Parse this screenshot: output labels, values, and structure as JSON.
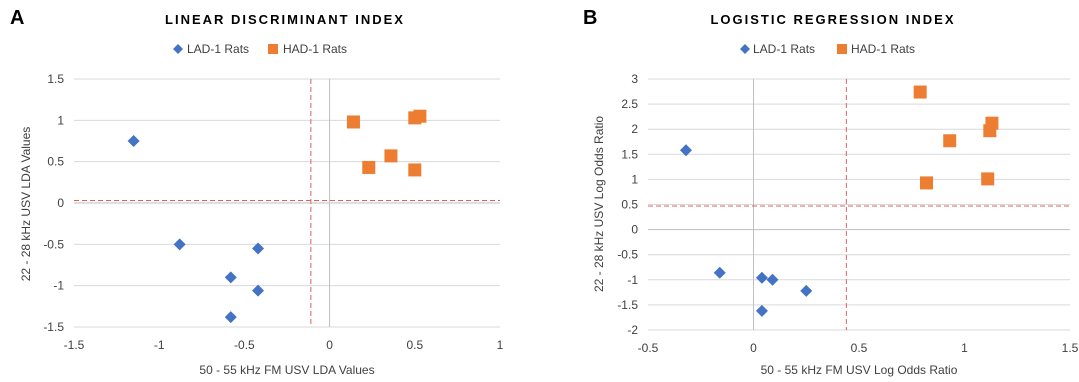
{
  "colors": {
    "lad": "#4472c4",
    "had": "#ed7d31",
    "threshold": "#e06060",
    "grid": "#d9d9d9",
    "axis": "#bfbfbf"
  },
  "chart_data": [
    {
      "panel": "A",
      "type": "scatter",
      "title": "LINEAR DISCRIMINANT INDEX",
      "xlabel": "50 - 55 kHz FM USV LDA Values",
      "ylabel": "22 - 28 kHz USV LDA Values",
      "xlim": [
        -1.5,
        1
      ],
      "ylim": [
        -1.5,
        1.5
      ],
      "xticks": [
        -1.5,
        -1,
        -0.5,
        0,
        0.5,
        1
      ],
      "yticks": [
        -1.5,
        -1,
        -0.5,
        0,
        0.5,
        1,
        1.5
      ],
      "xtick_labels": [
        "-1.5",
        "-1",
        "-0.5",
        "0",
        "0.5",
        "1"
      ],
      "ytick_labels": [
        "-1.5",
        "-1",
        "-0.5",
        "0",
        "0.5",
        "1",
        "1.5"
      ],
      "grid": "horizontal",
      "legend": "top-center",
      "thresholds": {
        "x": -0.11,
        "y": 0.03
      },
      "series": [
        {
          "name": "LAD-1 Rats",
          "marker": "diamond",
          "points": [
            [
              -1.15,
              0.75
            ],
            [
              -0.88,
              -0.5
            ],
            [
              -0.42,
              -0.55
            ],
            [
              -0.58,
              -0.9
            ],
            [
              -0.42,
              -1.06
            ],
            [
              -0.58,
              -1.38
            ]
          ]
        },
        {
          "name": "HAD-1 Rats",
          "marker": "square",
          "points": [
            [
              0.14,
              0.98
            ],
            [
              0.5,
              1.03
            ],
            [
              0.53,
              1.05
            ],
            [
              0.36,
              0.57
            ],
            [
              0.23,
              0.43
            ],
            [
              0.5,
              0.4
            ]
          ]
        }
      ]
    },
    {
      "panel": "B",
      "type": "scatter",
      "title": "LOGISTIC REGRESSION INDEX",
      "xlabel": "50 - 55 kHz FM USV Log Odds Ratio",
      "ylabel": "22 - 28 kHz USV Log Odds Ratio",
      "xlim": [
        -0.5,
        1.5
      ],
      "ylim": [
        -2,
        3
      ],
      "xticks": [
        -0.5,
        0,
        0.5,
        1,
        1.5
      ],
      "yticks": [
        -2,
        -1.5,
        -1,
        -0.5,
        0,
        0.5,
        1,
        1.5,
        2,
        2.5,
        3
      ],
      "xtick_labels": [
        "-0.5",
        "0",
        "0.5",
        "1",
        "1.5"
      ],
      "ytick_labels": [
        "-2",
        "-1.5",
        "-1",
        "-0.5",
        "0",
        "0.5",
        "1",
        "1.5",
        "2",
        "2.5",
        "3"
      ],
      "grid": "horizontal",
      "legend": "top-center",
      "thresholds": {
        "x": 0.44,
        "y": 0.47
      },
      "series": [
        {
          "name": "LAD-1 Rats",
          "marker": "diamond",
          "points": [
            [
              -0.32,
              1.58
            ],
            [
              -0.16,
              -0.86
            ],
            [
              0.04,
              -0.96
            ],
            [
              0.09,
              -1.0
            ],
            [
              0.25,
              -1.22
            ],
            [
              0.04,
              -1.62
            ]
          ]
        },
        {
          "name": "HAD-1 Rats",
          "marker": "square",
          "points": [
            [
              0.79,
              2.74
            ],
            [
              0.93,
              1.77
            ],
            [
              1.12,
              1.97
            ],
            [
              1.13,
              2.12
            ],
            [
              0.82,
              0.93
            ],
            [
              1.11,
              1.01
            ]
          ]
        }
      ]
    }
  ]
}
